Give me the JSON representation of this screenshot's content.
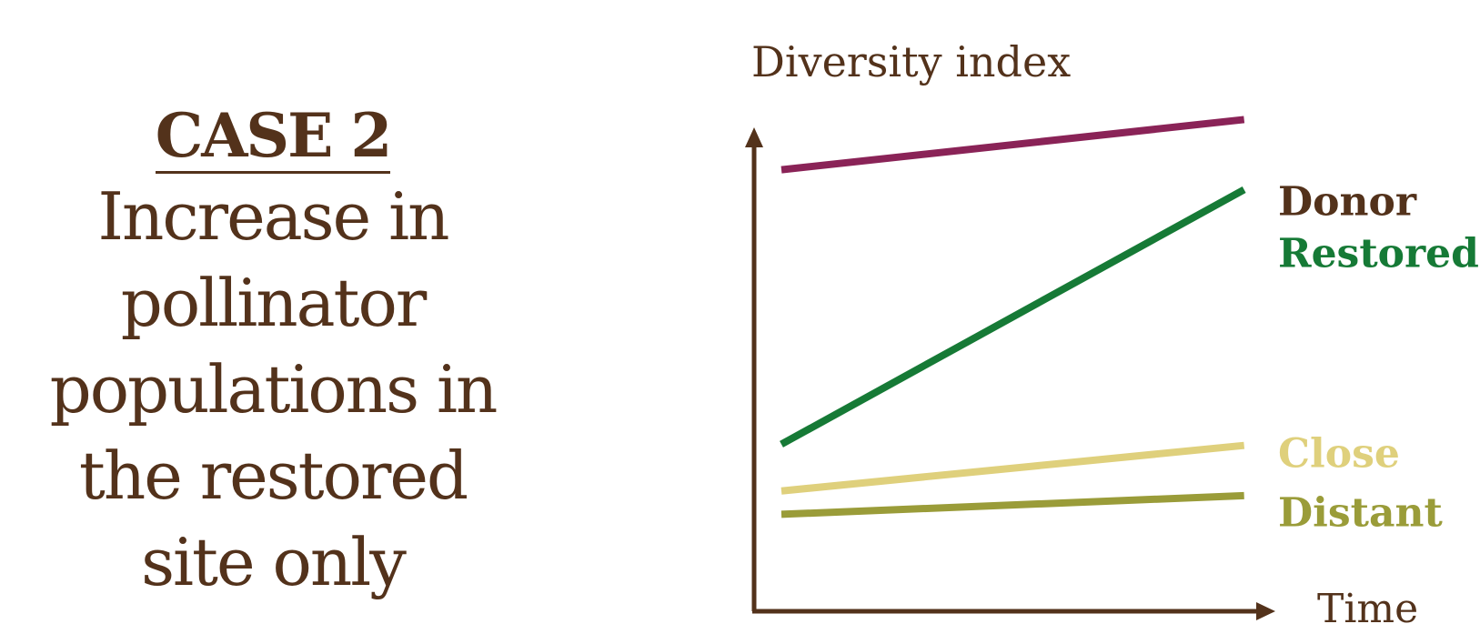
{
  "case": {
    "heading": "CASE 2",
    "lines": [
      "Increase in",
      "pollinator",
      "populations in",
      "the restored",
      "site only"
    ]
  },
  "colors": {
    "text": "#53321b",
    "axis": "#53321b",
    "donor": "#8a2357",
    "restored": "#167a36",
    "close": "#dfd07c",
    "distant": "#9a9c39"
  },
  "chart_data": {
    "type": "line",
    "ylabel": "Diversity index",
    "xlabel": "Time",
    "x": [
      0,
      1
    ],
    "xlim": [
      0,
      1.06
    ],
    "ylim": [
      0,
      1
    ],
    "grid": false,
    "legend": "right",
    "series": [
      {
        "name": "Donor",
        "values": [
          0.756,
          0.842
        ],
        "color": "#8a2357"
      },
      {
        "name": "Restored",
        "values": [
          0.286,
          0.722
        ],
        "color": "#167a36"
      },
      {
        "name": "Close",
        "values": [
          0.206,
          0.284
        ],
        "color": "#dfd07c"
      },
      {
        "name": "Distant",
        "values": [
          0.166,
          0.198
        ],
        "color": "#9a9c39"
      }
    ]
  }
}
